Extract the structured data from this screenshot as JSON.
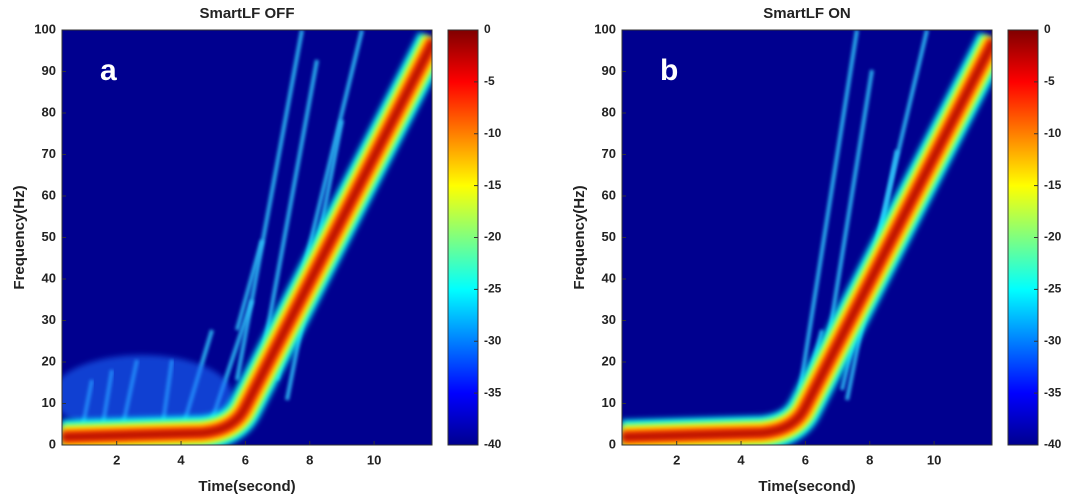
{
  "chart_data": [
    {
      "type": "heatmap",
      "title": "SmartLF OFF",
      "panel_label": "a",
      "x_label": "Time(second)",
      "y_label": "Frequency(Hz)",
      "xlim": [
        0.3,
        11.8
      ],
      "xticks": [
        2,
        4,
        6,
        8,
        10
      ],
      "ylim": [
        0,
        100
      ],
      "yticks": [
        0,
        10,
        20,
        30,
        40,
        50,
        60,
        70,
        80,
        90,
        100
      ],
      "colorbar": {
        "lim": [
          -40,
          0
        ],
        "ticks": [
          0,
          -5,
          -10,
          -15,
          -20,
          -25,
          -30,
          -35,
          -40
        ],
        "colormap": "jet"
      }
    },
    {
      "type": "heatmap",
      "title": "SmartLF ON",
      "panel_label": "b",
      "x_label": "Time(second)",
      "y_label": "Frequency(Hz)",
      "xlim": [
        0.3,
        11.8
      ],
      "xticks": [
        2,
        4,
        6,
        8,
        10
      ],
      "ylim": [
        0,
        100
      ],
      "yticks": [
        0,
        10,
        20,
        30,
        40,
        50,
        60,
        70,
        80,
        90,
        100
      ],
      "colorbar": {
        "lim": [
          -40,
          0
        ],
        "ticks": [
          0,
          -5,
          -10,
          -15,
          -20,
          -25,
          -30,
          -35,
          -40
        ],
        "colormap": "jet"
      }
    }
  ]
}
